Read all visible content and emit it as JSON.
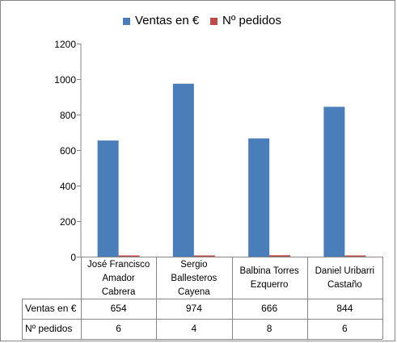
{
  "chart_data": {
    "type": "bar",
    "categories": [
      "José Francisco Amador Cabrera",
      "Sergio Ballesteros Cayena",
      "Balbina Torres Ezquerro",
      "Daniel Uribarri Castaño"
    ],
    "category_lines": [
      [
        "José Francisco",
        "Amador",
        "Cabrera"
      ],
      [
        "Sergio",
        "Ballesteros",
        "Cayena"
      ],
      [
        "Balbina Torres",
        "Ezquerro"
      ],
      [
        "Daniel Uribarri",
        "Castaño"
      ]
    ],
    "series": [
      {
        "name": "Ventas en €",
        "values": [
          654,
          974,
          666,
          844
        ],
        "color": "#4a7ebb"
      },
      {
        "name": "Nº pedidos",
        "values": [
          6,
          4,
          8,
          6
        ],
        "color": "#be4b48"
      }
    ],
    "yticks": [
      "0",
      "200",
      "400",
      "600",
      "800",
      "1000",
      "1200"
    ],
    "ylim": [
      0,
      1200
    ],
    "grid": false,
    "legend": "top",
    "data_table": true,
    "axis_color": "#868686"
  }
}
